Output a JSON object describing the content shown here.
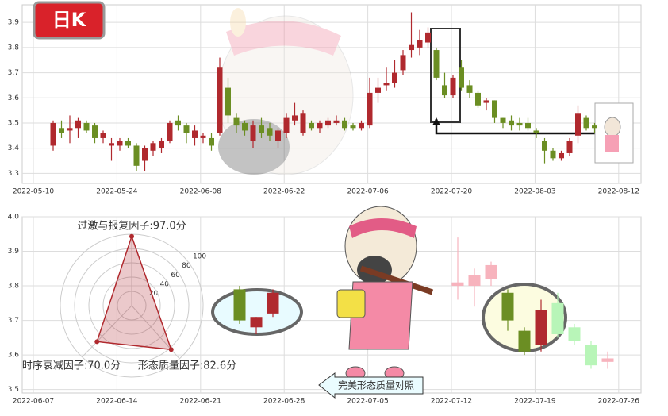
{
  "badge": "日K",
  "button": "完美形态质量对照",
  "chart_data": [
    {
      "type": "candlestick",
      "ylim": [
        3.26,
        3.97
      ],
      "yticks": [
        3.3,
        3.4,
        3.5,
        3.6,
        3.7,
        3.8,
        3.9
      ],
      "xticks": [
        "2022-05-10",
        "2022-05-24",
        "2022-06-08",
        "2022-06-22",
        "2022-07-06",
        "2022-07-20",
        "2022-08-03",
        "2022-08-12"
      ],
      "grid": true,
      "up_color": "#b0292e",
      "down_color": "#6b8e23",
      "ohlc": [
        [
          3.41,
          3.51,
          3.39,
          3.5
        ],
        [
          3.48,
          3.51,
          3.44,
          3.46
        ],
        [
          3.47,
          3.53,
          3.42,
          3.48
        ],
        [
          3.48,
          3.52,
          3.44,
          3.51
        ],
        [
          3.5,
          3.51,
          3.46,
          3.47
        ],
        [
          3.49,
          3.5,
          3.42,
          3.44
        ],
        [
          3.44,
          3.47,
          3.42,
          3.46
        ],
        [
          3.41,
          3.44,
          3.35,
          3.42
        ],
        [
          3.41,
          3.44,
          3.39,
          3.43
        ],
        [
          3.43,
          3.44,
          3.4,
          3.41
        ],
        [
          3.41,
          3.42,
          3.31,
          3.33
        ],
        [
          3.35,
          3.41,
          3.31,
          3.4
        ],
        [
          3.39,
          3.43,
          3.37,
          3.42
        ],
        [
          3.4,
          3.44,
          3.38,
          3.43
        ],
        [
          3.43,
          3.51,
          3.42,
          3.5
        ],
        [
          3.51,
          3.53,
          3.47,
          3.49
        ],
        [
          3.49,
          3.5,
          3.42,
          3.46
        ],
        [
          3.44,
          3.49,
          3.41,
          3.47
        ],
        [
          3.44,
          3.46,
          3.42,
          3.45
        ],
        [
          3.44,
          3.46,
          3.39,
          3.41
        ],
        [
          3.46,
          3.76,
          3.45,
          3.72
        ],
        [
          3.64,
          3.68,
          3.5,
          3.53
        ],
        [
          3.52,
          3.54,
          3.46,
          3.49
        ],
        [
          3.5,
          3.51,
          3.45,
          3.47
        ],
        [
          3.43,
          3.51,
          3.4,
          3.49
        ],
        [
          3.49,
          3.52,
          3.44,
          3.46
        ],
        [
          3.48,
          3.5,
          3.43,
          3.45
        ],
        [
          3.43,
          3.48,
          3.4,
          3.47
        ],
        [
          3.46,
          3.54,
          3.44,
          3.52
        ],
        [
          3.51,
          3.58,
          3.49,
          3.53
        ],
        [
          3.46,
          3.55,
          3.45,
          3.54
        ],
        [
          3.5,
          3.51,
          3.47,
          3.48
        ],
        [
          3.48,
          3.51,
          3.46,
          3.5
        ],
        [
          3.49,
          3.52,
          3.48,
          3.51
        ],
        [
          3.5,
          3.53,
          3.49,
          3.51
        ],
        [
          3.51,
          3.52,
          3.47,
          3.48
        ],
        [
          3.49,
          3.5,
          3.47,
          3.48
        ],
        [
          3.48,
          3.51,
          3.47,
          3.5
        ],
        [
          3.49,
          3.68,
          3.48,
          3.62
        ],
        [
          3.62,
          3.68,
          3.58,
          3.64
        ],
        [
          3.65,
          3.72,
          3.63,
          3.66
        ],
        [
          3.66,
          3.75,
          3.64,
          3.7
        ],
        [
          3.71,
          3.79,
          3.69,
          3.77
        ],
        [
          3.79,
          3.94,
          3.76,
          3.81
        ],
        [
          3.8,
          3.87,
          3.77,
          3.83
        ],
        [
          3.82,
          3.88,
          3.8,
          3.86
        ],
        [
          3.79,
          3.8,
          3.67,
          3.68
        ],
        [
          3.65,
          3.7,
          3.6,
          3.61
        ],
        [
          3.61,
          3.69,
          3.6,
          3.68
        ],
        [
          3.72,
          3.75,
          3.63,
          3.64
        ],
        [
          3.65,
          3.67,
          3.6,
          3.62
        ],
        [
          3.62,
          3.63,
          3.56,
          3.57
        ],
        [
          3.58,
          3.6,
          3.55,
          3.59
        ],
        [
          3.59,
          3.59,
          3.5,
          3.52
        ],
        [
          3.52,
          3.52,
          3.48,
          3.5
        ],
        [
          3.51,
          3.53,
          3.47,
          3.49
        ],
        [
          3.5,
          3.52,
          3.47,
          3.49
        ],
        [
          3.5,
          3.52,
          3.47,
          3.48
        ],
        [
          3.47,
          3.48,
          3.44,
          3.46
        ],
        [
          3.43,
          3.44,
          3.34,
          3.39
        ],
        [
          3.39,
          3.4,
          3.35,
          3.36
        ],
        [
          3.36,
          3.39,
          3.35,
          3.38
        ],
        [
          3.38,
          3.44,
          3.37,
          3.43
        ],
        [
          3.45,
          3.57,
          3.42,
          3.54
        ],
        [
          3.52,
          3.53,
          3.47,
          3.48
        ],
        [
          3.49,
          3.5,
          3.46,
          3.48
        ]
      ]
    },
    {
      "type": "candlestick",
      "ylim": [
        3.49,
        4.0
      ],
      "yticks": [
        3.5,
        3.6,
        3.7,
        3.8,
        3.9,
        {
          "value": 4.0,
          "label": "4.0"
        }
      ],
      "xticks": [
        "2022-06-07",
        "2022-06-14",
        "2022-06-21",
        "2022-06-28",
        "2022-07-05",
        "2022-07-12",
        "2022-07-19",
        "2022-07-26"
      ],
      "grid": true,
      "up_color": "#b0292e",
      "down_color": "#6b8e23",
      "faded_up_color": "#f7b3bd",
      "faded_down_color": "#b8f5b8",
      "groups": [
        {
          "faded": false,
          "ohlc": [
            [
              3.79,
              3.8,
              3.69,
              3.7
            ],
            [
              3.68,
              3.71,
              3.66,
              3.71
            ],
            [
              3.72,
              3.79,
              3.71,
              3.78
            ]
          ]
        },
        {
          "faded": true,
          "ohlc": [
            [
              3.8,
              3.94,
              3.76,
              3.81
            ],
            [
              3.8,
              3.85,
              3.74,
              3.83
            ],
            [
              3.82,
              3.87,
              3.8,
              3.86
            ]
          ]
        },
        {
          "faded": false,
          "ohlc": [
            [
              3.78,
              3.79,
              3.67,
              3.7
            ],
            [
              3.67,
              3.68,
              3.6,
              3.61
            ],
            [
              3.63,
              3.76,
              3.61,
              3.73
            ]
          ]
        },
        {
          "faded": true,
          "ohlc": [
            [
              3.75,
              3.78,
              3.65,
              3.66
            ],
            [
              3.68,
              3.69,
              3.63,
              3.64
            ],
            [
              3.63,
              3.64,
              3.56,
              3.57
            ],
            [
              3.58,
              3.61,
              3.56,
              3.59
            ]
          ]
        }
      ]
    },
    {
      "type": "radar",
      "rlim": [
        0,
        100
      ],
      "rticks": [
        20,
        40,
        60,
        80,
        100
      ],
      "color": "#b0292e",
      "values": [
        97.0,
        70.0,
        82.6
      ],
      "value_labels": [
        "过激与报复因子:97.0分",
        "时序衰减因子:70.0分",
        "形态质量因子:82.6分"
      ]
    }
  ]
}
